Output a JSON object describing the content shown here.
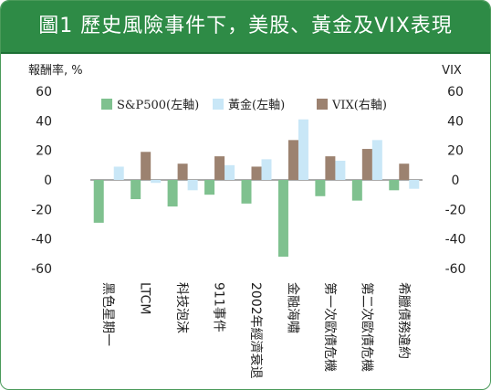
{
  "title": "圖1 歷史風險事件下，美股、黃金及VIX表現",
  "chart_data": {
    "type": "bar",
    "left_axis_title": "報酬率, %",
    "right_axis_title": "VIX",
    "ylim": [
      -60,
      60
    ],
    "yticks": [
      60,
      40,
      20,
      0,
      -20,
      -40,
      -60
    ],
    "y2lim": [
      -60,
      60
    ],
    "y2ticks": [
      60,
      40,
      20,
      0,
      -20,
      -40,
      -60
    ],
    "grid": false,
    "legend_position": "top",
    "categories": [
      "黑色星期一",
      "LTCM",
      "科技泡沫",
      "911事件",
      "2002年經濟衰退",
      "金融海嘯",
      "第一次歐債危機",
      "第二次歐債危機",
      "希臘債務違約"
    ],
    "series": [
      {
        "name": "S&P500(左軸)",
        "axis": "left",
        "color": "#7fc18f",
        "values": [
          -29,
          -13,
          -18,
          -10,
          -16,
          -52,
          -11,
          -14,
          -7
        ]
      },
      {
        "name": "黃金(左軸)",
        "axis": "left",
        "color": "#c9e7f7",
        "values": [
          9,
          -2,
          -7,
          10,
          14,
          41,
          13,
          27,
          -6
        ]
      },
      {
        "name": "VIX(右軸)",
        "axis": "right",
        "color": "#9c8270",
        "values": [
          0,
          19,
          11,
          16,
          9,
          27,
          16,
          21,
          11
        ]
      }
    ]
  }
}
